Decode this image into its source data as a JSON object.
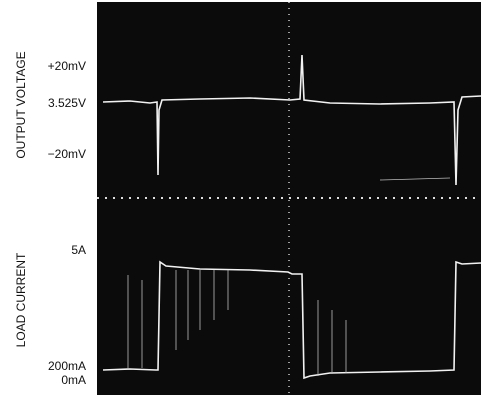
{
  "panels": [
    {
      "axis_label": "OUTPUT VOLTAGE",
      "tick_labels": [
        "+20mV",
        "3.525V",
        "−20mV"
      ]
    },
    {
      "axis_label": "LOAD CURRENT",
      "tick_labels": [
        "5A",
        "200mA",
        "0mA"
      ]
    }
  ]
}
